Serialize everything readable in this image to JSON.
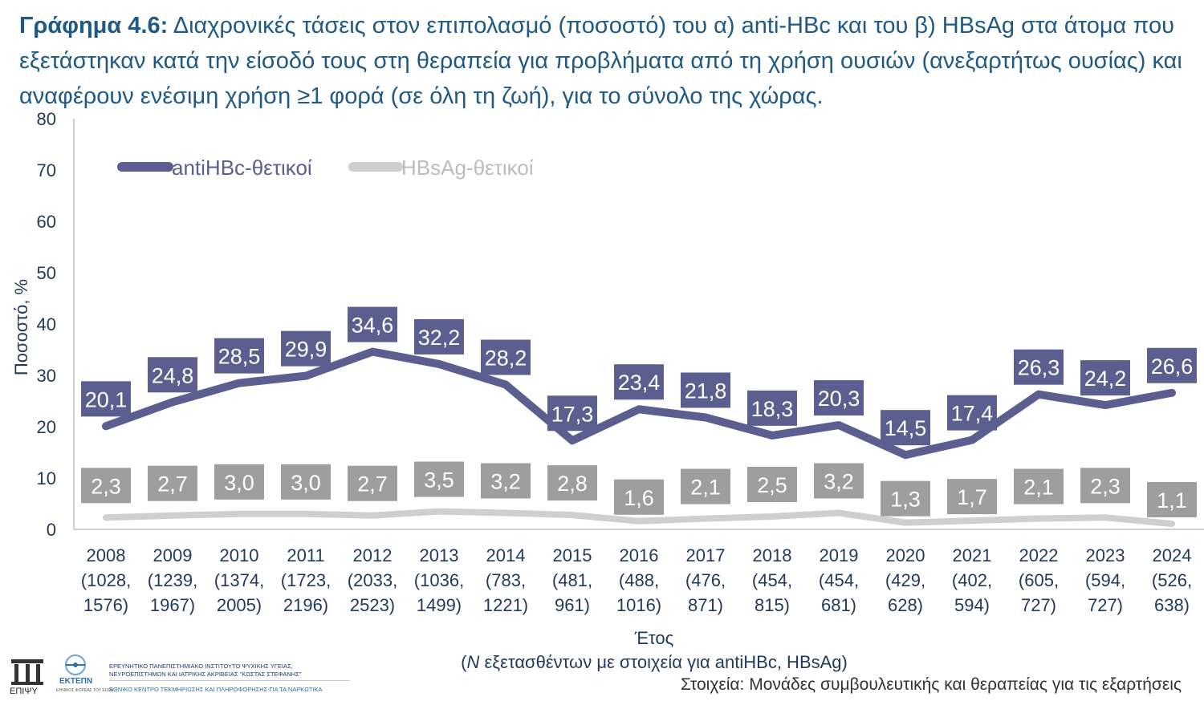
{
  "title": {
    "label": "Γράφημα 4.6:",
    "text": " Διαχρονικές τάσεις στον επιπολασμό (ποσοστό) του α) anti-HBc και του β) HBsAg στα άτομα που εξετάστηκαν κατά την είσοδό τους στη θεραπεία για προβλήματα από τη χρήση ουσιών (ανεξαρτήτως ουσίας) και αναφέρουν ενέσιμη χρήση ≥1 φορά (σε όλη τη ζωή), για το σύνολο της χώρας."
  },
  "chart_data": {
    "type": "line",
    "categories": [
      "2008",
      "2009",
      "2010",
      "2011",
      "2012",
      "2013",
      "2014",
      "2015",
      "2016",
      "2017",
      "2018",
      "2019",
      "2020",
      "2021",
      "2022",
      "2023",
      "2024"
    ],
    "category_notes": [
      [
        "(1028,",
        "1576)"
      ],
      [
        "(1239,",
        "1967)"
      ],
      [
        "(1374,",
        "2005)"
      ],
      [
        "(1723,",
        "2196)"
      ],
      [
        "(2033,",
        "2523)"
      ],
      [
        "(1036,",
        "1499)"
      ],
      [
        "(783,",
        "1221)"
      ],
      [
        "(481,",
        "961)"
      ],
      [
        "(488,",
        "1016)"
      ],
      [
        "(476,",
        "871)"
      ],
      [
        "(454,",
        "815)"
      ],
      [
        "(454,",
        "681)"
      ],
      [
        "(429,",
        "628)"
      ],
      [
        "(402,",
        "594)"
      ],
      [
        "(605,",
        "727)"
      ],
      [
        "(594,",
        "727)"
      ],
      [
        "(526,",
        "638)"
      ]
    ],
    "series": [
      {
        "name": "antiHBc-θετικοί",
        "values": [
          20.1,
          24.8,
          28.5,
          29.9,
          34.6,
          32.2,
          28.2,
          17.3,
          23.4,
          21.8,
          18.3,
          20.3,
          14.5,
          17.4,
          26.3,
          24.2,
          26.6
        ],
        "labels": [
          "20,1",
          "24,8",
          "28,5",
          "29,9",
          "34,6",
          "32,2",
          "28,2",
          "17,3",
          "23,4",
          "21,8",
          "18,3",
          "20,3",
          "14,5",
          "17,4",
          "26,3",
          "24,2",
          "26,6"
        ],
        "color": "#5a5f8f",
        "label_bg": "#5a5f8f"
      },
      {
        "name": "HBsAg-θετικοί",
        "values": [
          2.3,
          2.7,
          3.0,
          3.0,
          2.7,
          3.5,
          3.2,
          2.8,
          1.6,
          2.1,
          2.5,
          3.2,
          1.3,
          1.7,
          2.1,
          2.3,
          1.1
        ],
        "labels": [
          "2,3",
          "2,7",
          "3,0",
          "3,0",
          "2,7",
          "3,5",
          "3,2",
          "2,8",
          "1,6",
          "2,1",
          "2,5",
          "3,2",
          "1,3",
          "1,7",
          "2,1",
          "2,3",
          "1,1"
        ],
        "color": "#cfcfcf",
        "label_bg": "#9e9e9e"
      }
    ],
    "yticks": [
      "0",
      "10",
      "20",
      "30",
      "40",
      "50",
      "60",
      "70",
      "80"
    ],
    "ylim": [
      0,
      80
    ],
    "ylabel": "Ποσοστό, %",
    "xlabel": "Έτος",
    "xlabel2": "(N εξετασθέντων με στοιχεία για antiHBc, HBsAg)",
    "legend_position": "top-left",
    "grid": false
  },
  "footer": {
    "source": "Στοιχεία: Μονάδες συμβουλευτικής και θεραπείας για τις εξαρτήσεις",
    "logo1": "ΕΠΙΨΥ",
    "logo2": "ΕΚΤΕΠΝ",
    "logo2_sub": "ΕΘΝΙΚΟΣ ΦΟΡΕΑΣ ΤΟΥ EUDA",
    "org_line1": "ΕΡΕΥΝΗΤΙΚΟ ΠΑΝΕΠΙΣΤΗΜΙΑΚΟ ΙΝΣΤΙΤΟΥΤΟ ΨΥΧΙΚΗΣ ΥΓΕΙΑΣ,",
    "org_line2": "ΝΕΥΡΟΕΠΙΣΤΗΜΩΝ ΚΑΙ ΙΑΤΡΙΚΗΣ ΑΚΡΙΒΕΙΑΣ \"ΚΩΣΤΑΣ ΣΤΕΦΑΝΗΣ\"",
    "org_line3": "ΕΘΝΙΚΟ ΚΕΝΤΡΟ ΤΕΚΜΗΡΙΩΣΗΣ ΚΑΙ ΠΛΗΡΟΦΟΡΗΣΗΣ ΓΙΑ ΤΑ ΝΑΡΚΩΤΙΚΑ"
  }
}
